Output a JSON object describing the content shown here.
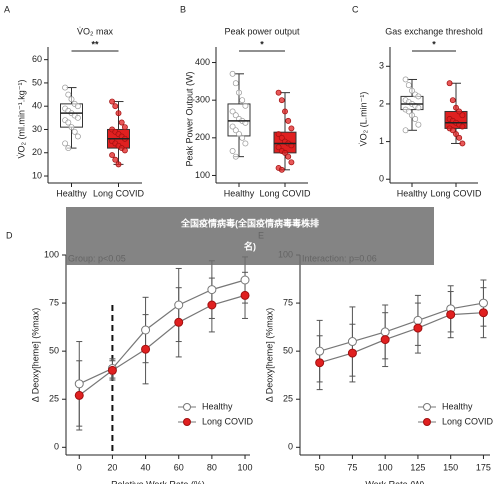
{
  "chart_data": [
    {
      "type": "box",
      "panel": "A",
      "title": "V̇O₂ max",
      "ylabel": "V̇O₂ (ml.min⁻¹.kg⁻¹)",
      "categories": [
        "Healthy",
        "Long COVID"
      ],
      "colors": [
        "#ffffff",
        "#e02020"
      ],
      "ylim": [
        7,
        62
      ],
      "yticks": [
        10,
        20,
        30,
        40,
        50,
        60
      ],
      "significance": "**",
      "boxes": [
        {
          "whisker_low": 22,
          "q1": 31,
          "median": 37,
          "q3": 41,
          "whisker_high": 48
        },
        {
          "whisker_low": 15,
          "q1": 22,
          "median": 26,
          "q3": 30,
          "whisker_high": 42
        }
      ],
      "points": [
        [
          48,
          45,
          43,
          41,
          40,
          39,
          38,
          37,
          36,
          35,
          34,
          33,
          31,
          29,
          27,
          24,
          22
        ],
        [
          42,
          40,
          37,
          33,
          31,
          30,
          29,
          28,
          27,
          26,
          25,
          24,
          23,
          22,
          21,
          19,
          17,
          15
        ]
      ]
    },
    {
      "type": "box",
      "panel": "B",
      "title": "Peak power output",
      "ylabel": "Peak Power Output (W)",
      "categories": [
        "Healthy",
        "Long COVID"
      ],
      "colors": [
        "#ffffff",
        "#e02020"
      ],
      "ylim": [
        80,
        420
      ],
      "yticks": [
        100,
        200,
        300,
        400
      ],
      "significance": "*",
      "boxes": [
        {
          "whisker_low": 150,
          "q1": 205,
          "median": 245,
          "q3": 290,
          "whisker_high": 370
        },
        {
          "whisker_low": 115,
          "q1": 160,
          "median": 185,
          "q3": 215,
          "whisker_high": 320
        }
      ],
      "points": [
        [
          370,
          345,
          320,
          300,
          285,
          270,
          260,
          250,
          245,
          240,
          230,
          220,
          210,
          200,
          185,
          165,
          150
        ],
        [
          320,
          300,
          270,
          245,
          225,
          210,
          200,
          190,
          185,
          180,
          175,
          165,
          160,
          150,
          135,
          120,
          115
        ]
      ]
    },
    {
      "type": "box",
      "panel": "C",
      "title": "Gas exchange threshold",
      "ylabel": "V̇O₂ (L.min⁻¹)",
      "categories": [
        "Healthy",
        "Long COVID"
      ],
      "colors": [
        "#ffffff",
        "#e02020"
      ],
      "ylim": [
        -0.1,
        3.3
      ],
      "yticks": [
        0,
        1,
        2,
        3
      ],
      "significance": "*",
      "boxes": [
        {
          "whisker_low": 1.3,
          "q1": 1.85,
          "median": 2.0,
          "q3": 2.2,
          "whisker_high": 2.65
        },
        {
          "whisker_low": 0.95,
          "q1": 1.35,
          "median": 1.5,
          "q3": 1.8,
          "whisker_high": 2.55
        }
      ],
      "points": [
        [
          2.65,
          2.5,
          2.35,
          2.25,
          2.2,
          2.1,
          2.05,
          2.0,
          1.95,
          1.9,
          1.85,
          1.8,
          1.7,
          1.6,
          1.45,
          1.3
        ],
        [
          2.55,
          2.1,
          1.9,
          1.8,
          1.7,
          1.6,
          1.55,
          1.5,
          1.45,
          1.4,
          1.35,
          1.3,
          1.2,
          1.1,
          0.95
        ]
      ]
    },
    {
      "type": "line",
      "panel": "D",
      "annotation": "Group: p<0.05",
      "xlabel": "Relative Work Rate (%)",
      "ylabel": "Δ Deoxy[heme] (%max)",
      "x": [
        0,
        20,
        40,
        60,
        80,
        100
      ],
      "xlim": [
        -8,
        103
      ],
      "xticks": [
        0,
        20,
        40,
        60,
        80,
        100
      ],
      "ylim": [
        -4,
        100
      ],
      "yticks": [
        0,
        25,
        50,
        75,
        100
      ],
      "vline": 20,
      "legend": "lower right",
      "series": [
        {
          "name": "Healthy",
          "color": "#ffffff",
          "values": [
            33,
            41,
            61,
            74,
            82,
            87
          ],
          "errors": [
            22,
            5,
            17,
            19,
            15,
            12
          ]
        },
        {
          "name": "Long COVID",
          "color": "#e02020",
          "values": [
            27,
            40,
            51,
            65,
            74,
            79
          ],
          "errors": [
            18,
            5,
            18,
            18,
            14,
            12
          ]
        }
      ]
    },
    {
      "type": "line",
      "panel": "E",
      "annotation": "Interaction: p=0.06",
      "xlabel": "Work Rate (W)",
      "ylabel": "Δ Deoxy[heme] (%max)",
      "x": [
        50,
        75,
        100,
        125,
        150,
        175
      ],
      "xlim": [
        35,
        180
      ],
      "xticks": [
        50,
        75,
        100,
        125,
        150,
        175
      ],
      "ylim": [
        -4,
        100
      ],
      "yticks": [
        0,
        25,
        50,
        75,
        100
      ],
      "legend": "lower right",
      "series": [
        {
          "name": "Healthy",
          "color": "#ffffff",
          "values": [
            50,
            55,
            60,
            66,
            72,
            75
          ],
          "errors": [
            16,
            18,
            14,
            13,
            12,
            12
          ]
        },
        {
          "name": "Long COVID",
          "color": "#e02020",
          "values": [
            44,
            49,
            56,
            62,
            69,
            70
          ],
          "errors": [
            14,
            15,
            14,
            13,
            12,
            13
          ]
        }
      ]
    }
  ],
  "overlay_text": [
    "全国疫情病毒(全国疫情病毒毒株排",
    "名)"
  ]
}
